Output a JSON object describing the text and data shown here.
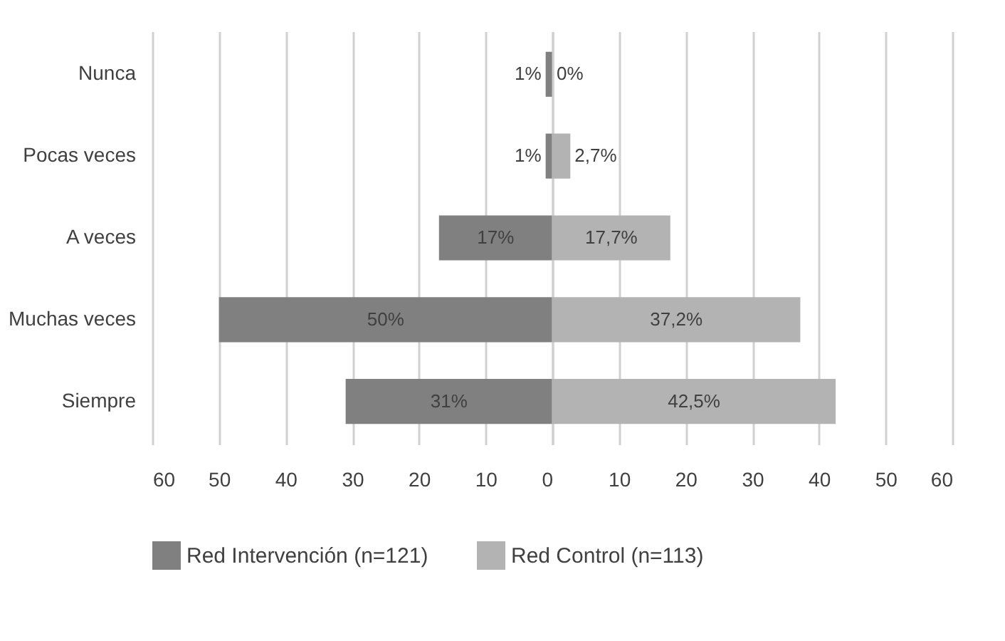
{
  "chart_data": [
    {
      "type": "bar",
      "orientation": "horizontal",
      "categories": [
        "Nunca",
        "Pocas veces",
        "A veces",
        "Muchas veces",
        "Siempre"
      ],
      "series": [
        {
          "name": "Red Intervención  (n=121)",
          "color": "#808080",
          "values": [
            1,
            1,
            17,
            50,
            31
          ],
          "value_labels": [
            "1%",
            "1%",
            "17%",
            "50%",
            "31%"
          ]
        }
      ],
      "xlim": [
        60,
        0
      ],
      "xticks": [
        60,
        50,
        40,
        30,
        20,
        10,
        0
      ],
      "grid": "x",
      "legend": "bottom"
    },
    {
      "type": "bar",
      "orientation": "horizontal",
      "categories": [
        "Nunca",
        "Pocas veces",
        "A veces",
        "Muchas veces",
        "Siempre"
      ],
      "series": [
        {
          "name": "Red Control (n=113)",
          "color": "#b3b3b3",
          "values": [
            0,
            2.7,
            17.7,
            37.2,
            42.5
          ],
          "value_labels": [
            "0%",
            "2,7%",
            "17,7%",
            "37,2%",
            "42,5%"
          ]
        }
      ],
      "xlim": [
        0,
        60
      ],
      "xticks": [
        {
          "value": 0,
          "label": null
        },
        10,
        20,
        30,
        40,
        50,
        60
      ],
      "grid": "x",
      "legend": "bottom",
      "tick_labels": "x"
    }
  ]
}
